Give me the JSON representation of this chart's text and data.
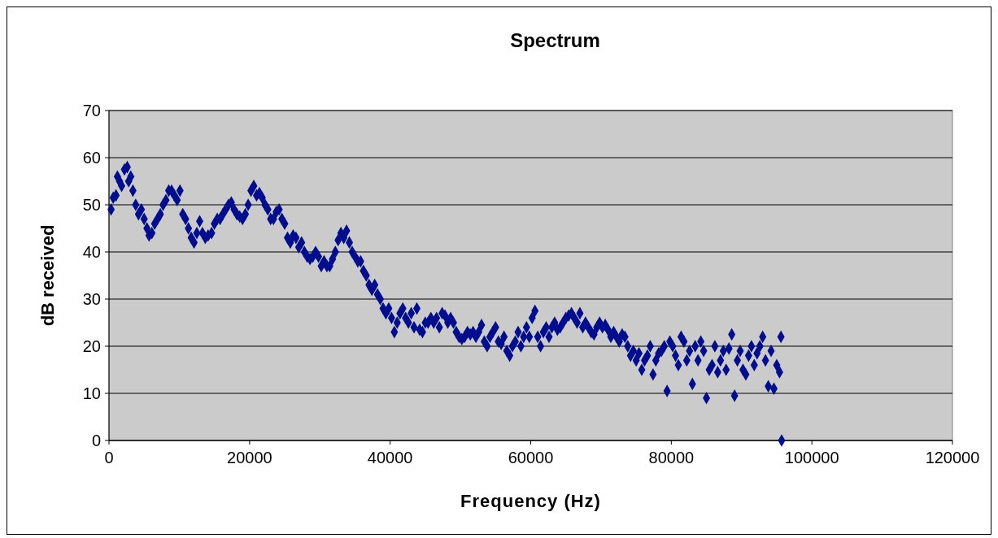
{
  "chart_data": {
    "type": "scatter",
    "title": "Spectrum",
    "xlabel": "Frequency (Hz)",
    "ylabel": "dB received",
    "xlim": [
      0,
      120000
    ],
    "xticks": [
      0,
      20000,
      40000,
      60000,
      80000,
      100000,
      120000
    ],
    "ylim": [
      0,
      70
    ],
    "yticks": [
      0,
      10,
      20,
      30,
      40,
      50,
      60,
      70
    ],
    "grid": "y",
    "marker": "diamond",
    "series": [
      {
        "color": "#000e8e",
        "x": [
          300,
          600,
          1000,
          1200,
          1500,
          1800,
          2200,
          2600,
          2800,
          3100,
          3400,
          3800,
          4200,
          4600,
          5000,
          5400,
          5700,
          6100,
          6500,
          6900,
          7300,
          7700,
          8100,
          8500,
          8900,
          9300,
          9700,
          10100,
          10500,
          10900,
          11300,
          11700,
          12100,
          12500,
          12900,
          13300,
          13700,
          14100,
          14600,
          15000,
          15400,
          15800,
          16200,
          16600,
          17000,
          17400,
          17800,
          18200,
          18600,
          19000,
          19400,
          19800,
          20200,
          20600,
          21000,
          21400,
          21800,
          22200,
          22600,
          23000,
          23400,
          23800,
          24200,
          24600,
          25000,
          25400,
          25800,
          26200,
          26600,
          27000,
          27400,
          27800,
          28200,
          28600,
          29000,
          29400,
          29800,
          30200,
          30600,
          31000,
          31400,
          31800,
          32200,
          32600,
          33000,
          33400,
          33800,
          34200,
          34600,
          35000,
          35400,
          35800,
          36200,
          36600,
          37000,
          37400,
          37800,
          38200,
          38600,
          39000,
          39400,
          39800,
          40200,
          40600,
          41000,
          41400,
          41800,
          42200,
          42600,
          43000,
          43400,
          43800,
          44200,
          44600,
          45000,
          45400,
          45800,
          46200,
          46600,
          47000,
          47400,
          47800,
          48200,
          48600,
          49000,
          49400,
          49800,
          50200,
          50600,
          51000,
          51400,
          51800,
          52200,
          52600,
          53000,
          53400,
          53800,
          54200,
          54600,
          55000,
          55400,
          55800,
          56200,
          56600,
          57000,
          57400,
          57800,
          58200,
          58600,
          59000,
          59400,
          59800,
          60200,
          60600,
          61000,
          61400,
          61800,
          62200,
          62600,
          63000,
          63400,
          63800,
          64200,
          64600,
          65000,
          65400,
          65800,
          66200,
          66600,
          67000,
          67400,
          67800,
          68200,
          68600,
          69000,
          69400,
          69800,
          70200,
          70600,
          71000,
          71400,
          71800,
          72200,
          72600,
          73000,
          73400,
          73800,
          74200,
          74600,
          75000,
          75400,
          75800,
          76200,
          76600,
          77000,
          77400,
          77800,
          78200,
          78600,
          79000,
          79400,
          79800,
          80200,
          80600,
          81000,
          81400,
          81800,
          82200,
          82600,
          83000,
          83400,
          83800,
          84200,
          84600,
          85000,
          85400,
          85800,
          86200,
          86600,
          87000,
          87400,
          87800,
          88200,
          88600,
          89000,
          89400,
          89800,
          90200,
          90600,
          91000,
          91400,
          91800,
          92200,
          92600,
          93000,
          93400,
          93800,
          94200,
          94600,
          95000,
          95400,
          95600,
          95700
        ],
        "values": [
          49,
          51.5,
          52,
          56,
          55,
          54,
          57.5,
          58,
          55,
          56,
          53,
          50,
          48,
          49,
          47,
          45,
          43.5,
          44,
          46,
          47,
          48,
          50,
          51,
          53,
          53,
          52,
          51,
          53,
          48,
          47,
          45,
          43,
          42,
          44,
          46.5,
          44,
          43,
          43.5,
          44,
          46,
          47,
          47,
          48,
          49,
          50,
          50.5,
          49,
          48,
          47.5,
          47,
          48,
          50,
          53,
          54,
          52,
          52.5,
          51.5,
          50,
          49,
          47,
          47,
          48.5,
          49,
          47,
          46,
          43,
          42,
          43.5,
          43,
          41,
          42,
          40,
          39,
          38.5,
          39,
          40,
          39,
          37,
          38,
          37,
          37,
          38.5,
          40,
          42.5,
          44,
          43,
          44.5,
          42,
          40,
          39,
          38,
          38,
          36,
          35,
          33,
          32,
          33,
          31,
          30,
          28,
          27,
          28,
          26,
          23,
          25,
          27,
          28,
          26,
          25,
          27,
          24,
          28,
          23.5,
          23,
          25,
          25,
          26,
          25,
          26,
          24,
          27,
          26.5,
          25,
          26,
          25,
          23,
          22,
          21.5,
          22,
          23,
          22.5,
          23,
          22,
          23,
          24.5,
          21,
          20,
          22,
          23,
          24,
          21,
          20.5,
          22,
          19,
          18,
          20,
          21,
          23,
          20,
          22,
          24,
          22,
          26,
          27.5,
          22,
          20,
          23,
          24,
          22,
          24,
          25,
          23.5,
          24,
          25,
          26,
          26.5,
          27,
          26,
          25,
          27,
          24,
          25,
          24,
          23,
          22.5,
          24,
          25,
          24,
          24.5,
          23.5,
          22,
          23,
          22,
          21,
          22.5,
          22,
          20,
          18,
          19,
          17,
          18.5,
          15,
          17,
          18,
          20,
          14,
          17,
          18.5,
          19,
          20,
          10.5,
          21,
          20,
          18,
          16,
          22,
          21,
          17,
          19,
          12,
          20,
          17,
          21,
          19,
          9,
          15,
          16,
          20,
          14.5,
          17,
          19,
          15,
          19.5,
          22.5,
          9.5,
          17,
          19,
          15,
          14,
          18,
          20,
          16,
          18.5,
          20,
          22,
          17,
          11.5,
          19,
          11,
          16,
          14.5,
          22,
          0
        ]
      }
    ]
  }
}
